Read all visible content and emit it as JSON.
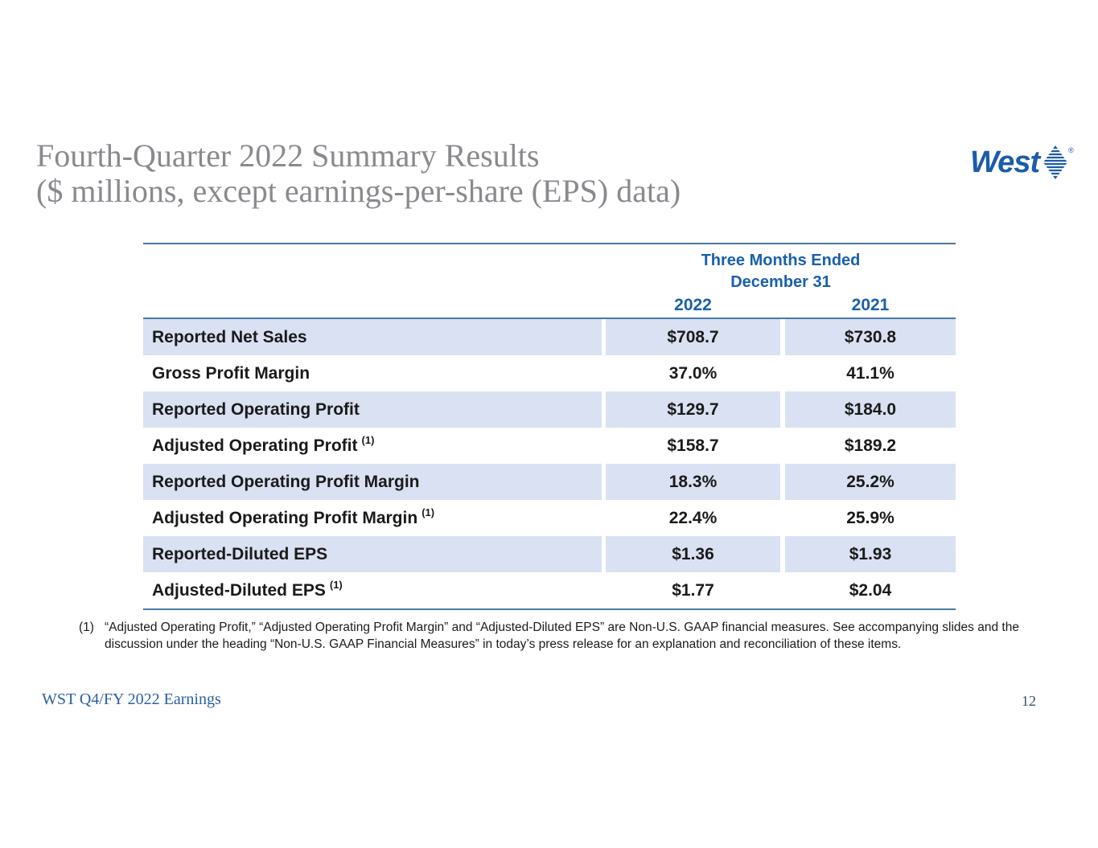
{
  "slide": {
    "title_line1": "Fourth-Quarter 2022 Summary Results",
    "title_line2": "($ millions, except earnings-per-share (EPS) data)",
    "footer_left": "WST Q4/FY 2022 Earnings",
    "page_number": "12",
    "logo_text": "West",
    "logo_reg": "®"
  },
  "table": {
    "header_group_line1": "Three Months Ended",
    "header_group_line2": "December 31",
    "col_headers": [
      "2022",
      "2021"
    ],
    "rows": [
      {
        "label": "Reported Net Sales",
        "sup": "",
        "v2022": "$708.7",
        "v2021": "$730.8",
        "shaded": true
      },
      {
        "label": "Gross Profit Margin",
        "sup": "",
        "v2022": "37.0%",
        "v2021": "41.1%",
        "shaded": false
      },
      {
        "label": "Reported Operating Profit",
        "sup": "",
        "v2022": "$129.7",
        "v2021": "$184.0",
        "shaded": true
      },
      {
        "label": "Adjusted Operating Profit",
        "sup": "(1)",
        "v2022": "$158.7",
        "v2021": "$189.2",
        "shaded": false
      },
      {
        "label": "Reported Operating Profit Margin",
        "sup": "",
        "v2022": "18.3%",
        "v2021": "25.2%",
        "shaded": true
      },
      {
        "label": "Adjusted Operating Profit Margin",
        "sup": "(1)",
        "v2022": "22.4%",
        "v2021": "25.9%",
        "shaded": false
      },
      {
        "label": "Reported-Diluted EPS",
        "sup": "",
        "v2022": "$1.36",
        "v2021": "$1.93",
        "shaded": true
      },
      {
        "label": "Adjusted-Diluted EPS",
        "sup": "(1)",
        "v2022": "$1.77",
        "v2021": "$2.04",
        "shaded": false
      }
    ]
  },
  "footnote": {
    "marker": "(1)",
    "text": "“Adjusted Operating Profit,” “Adjusted Operating Profit Margin” and “Adjusted-Diluted EPS” are Non-U.S. GAAP financial measures. See accompanying slides and the discussion under the heading “Non-U.S. GAAP Financial Measures” in today’s press release for an explanation and reconciliation of these items."
  },
  "colors": {
    "brand-blue": "#1c5ca8",
    "header-text-blue": "#1a5fab",
    "row-shade": "#d9e1f2",
    "rule-blue": "#4878a8",
    "title-gray": "#8a898e",
    "footer-blue": "#2a5f9f",
    "page-number-color": "#37506d",
    "text-black": "#1a1a1a"
  }
}
